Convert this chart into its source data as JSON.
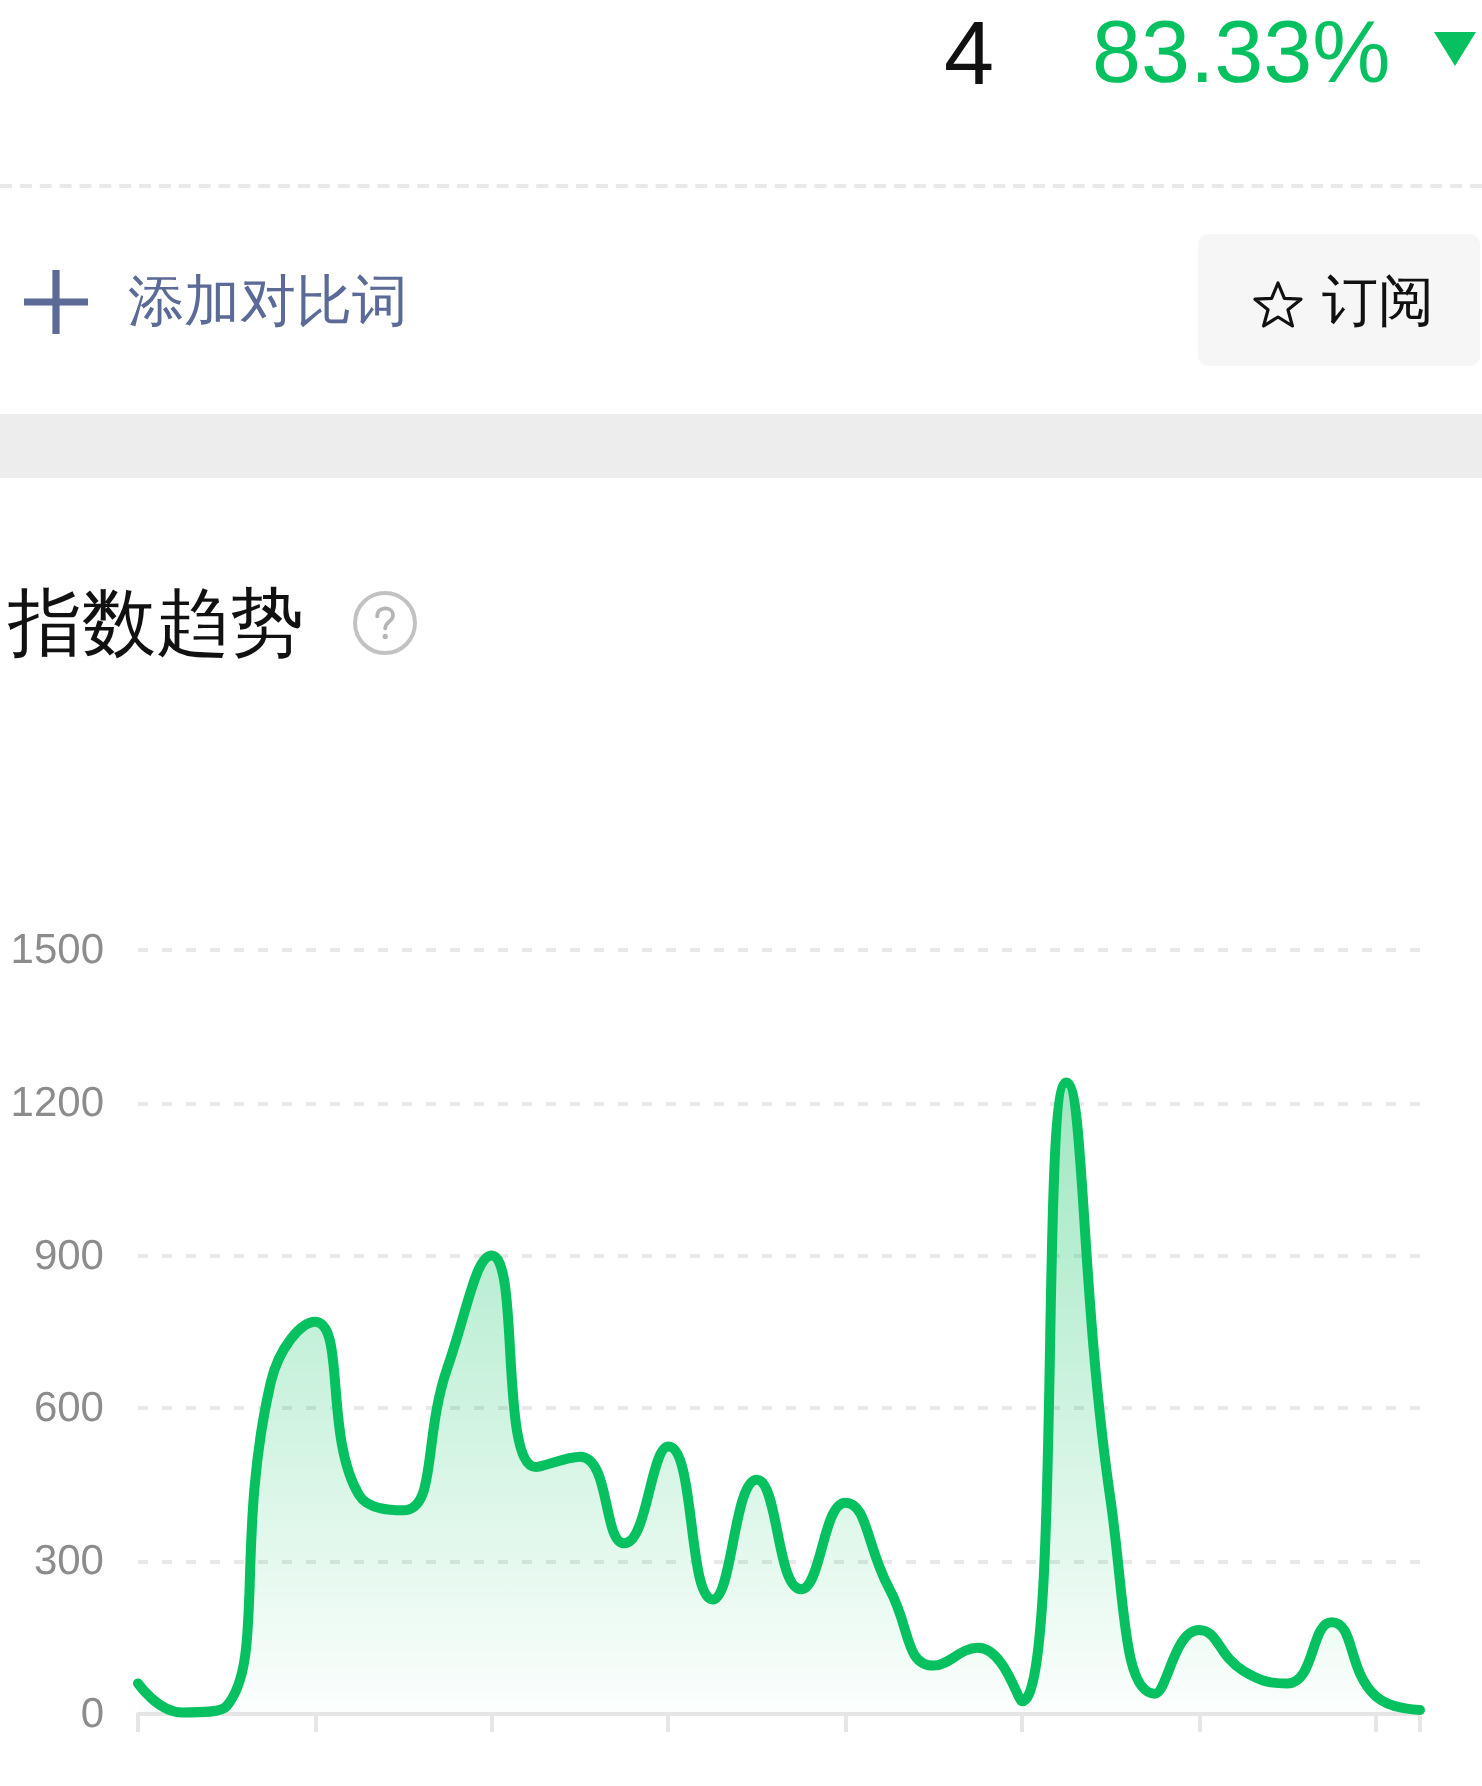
{
  "chart_data": {
    "type": "area",
    "title": "指数趋势",
    "annotations": [
      "4",
      "83.33%",
      "添加对比词",
      "订阅"
    ],
    "categories": [
      null,
      null,
      null,
      null,
      null,
      null,
      null,
      null,
      null,
      null,
      null,
      null,
      null,
      null,
      null,
      null,
      null,
      null,
      null,
      null,
      null,
      null,
      null,
      null,
      null,
      null,
      null,
      null,
      null,
      null
    ],
    "values": [
      60,
      3,
      15,
      650,
      770,
      430,
      400,
      680,
      900,
      485,
      505,
      335,
      525,
      225,
      460,
      245,
      415,
      245,
      95,
      130,
      25,
      1240,
      420,
      40,
      165,
      85,
      60,
      180,
      35,
      8
    ],
    "color": "#07c160",
    "ylim": [
      0,
      1500
    ],
    "yticks": [
      0,
      300,
      600,
      900,
      1200,
      1500
    ],
    "grid": "y",
    "tick_labels": "y"
  }
}
